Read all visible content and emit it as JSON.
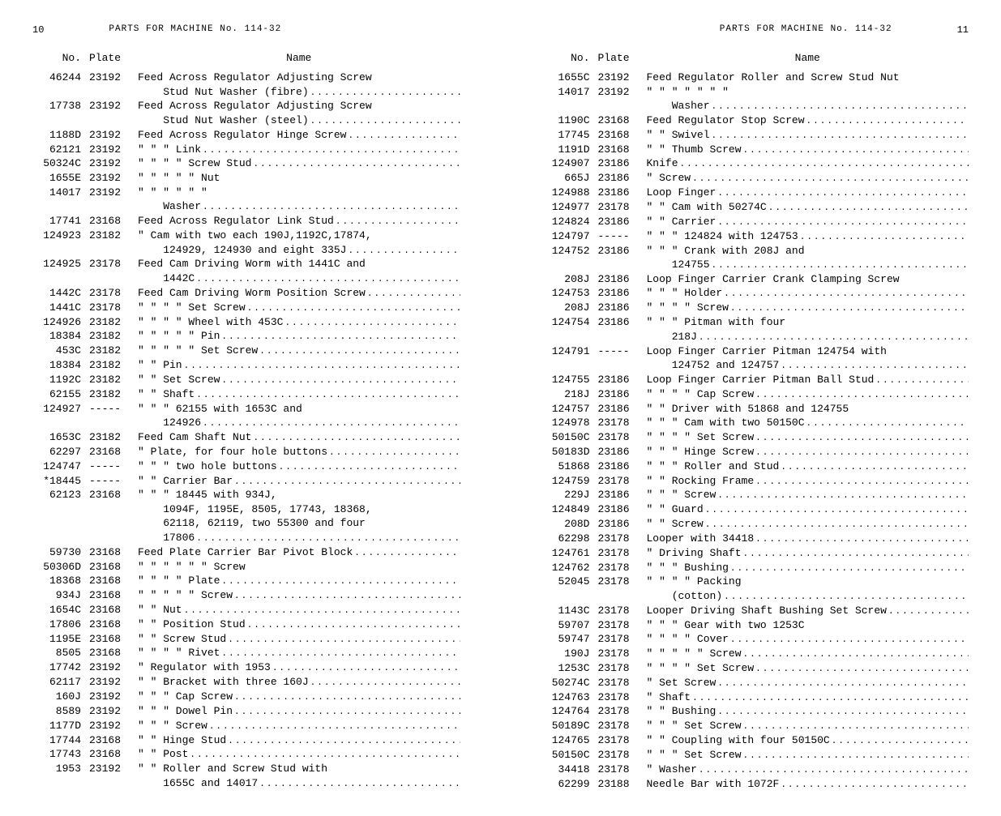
{
  "leftPage": {
    "pageNum": "10",
    "title": "PARTS FOR MACHINE No. 114-32",
    "columns": [
      "No.",
      "Plate",
      "Name"
    ],
    "rows": [
      {
        "no": "46244",
        "plate": "23192",
        "name": "Feed Across Regulator Adjusting Screw",
        "dots": false
      },
      {
        "no": "",
        "plate": "",
        "name": "   Stud Nut Washer (fibre)",
        "dots": true,
        "indent": 2
      },
      {
        "no": "17738",
        "plate": "23192",
        "name": "Feed Across Regulator Adjusting Screw",
        "dots": false
      },
      {
        "no": "",
        "plate": "",
        "name": "   Stud Nut Washer (steel)",
        "dots": true,
        "indent": 2
      },
      {
        "no": "1188D",
        "plate": "23192",
        "name": "Feed Across Regulator Hinge Screw",
        "dots": true
      },
      {
        "no": "62121",
        "plate": "23192",
        "name": "\"    \"    \"    Link",
        "dots": true
      },
      {
        "no": "50324C",
        "plate": "23192",
        "name": "\"    \"    \"     \"   Screw Stud",
        "dots": true
      },
      {
        "no": "1655E",
        "plate": "23192",
        "name": "\"    \"    \"     \"    \"   Nut",
        "dots": false
      },
      {
        "no": "14017",
        "plate": "23192",
        "name": "\"    \"    \"     \"    \"    \"",
        "dots": false
      },
      {
        "no": "",
        "plate": "",
        "name": "   Washer",
        "dots": true,
        "indent": 2
      },
      {
        "no": "17741",
        "plate": "23168",
        "name": "Feed Across Regulator Link Stud",
        "dots": true
      },
      {
        "no": "124923",
        "plate": "23182",
        "name": "\"  Cam with two each 190J,1192C,17874,",
        "dots": false
      },
      {
        "no": "",
        "plate": "",
        "name": "   124929, 124930 and eight 335J",
        "dots": true,
        "indent": 2
      },
      {
        "no": "124925",
        "plate": "23178",
        "name": "Feed Cam Driving Worm with 1441C and",
        "dots": false
      },
      {
        "no": "",
        "plate": "",
        "name": "   1442C",
        "dots": true,
        "indent": 2
      },
      {
        "no": "1442C",
        "plate": "23178",
        "name": "Feed Cam Driving Worm Position Screw",
        "dots": true
      },
      {
        "no": "1441C",
        "plate": "23178",
        "name": "\"   \"    \"    \"    Set Screw",
        "dots": true
      },
      {
        "no": "124926",
        "plate": "23182",
        "name": "\"   \"    \"    \"    Wheel with 453C",
        "dots": true
      },
      {
        "no": "18384",
        "plate": "23182",
        "name": "\"   \"    \"    \"    \"   Pin",
        "dots": true
      },
      {
        "no": "453C",
        "plate": "23182",
        "name": "\"   \"    \"    \"    \"   Set Screw",
        "dots": true
      },
      {
        "no": "18384",
        "plate": "23182",
        "name": "\"   \"    Pin",
        "dots": true
      },
      {
        "no": "1192C",
        "plate": "23182",
        "name": "\"   \"    Set Screw",
        "dots": true
      },
      {
        "no": "62155",
        "plate": "23182",
        "name": "\"   \"    Shaft",
        "dots": true
      },
      {
        "no": "124927",
        "plate": "-----",
        "name": "\"   \"     \"   62155 with 1653C and",
        "dots": false
      },
      {
        "no": "",
        "plate": "",
        "name": "   124926",
        "dots": true,
        "indent": 2
      },
      {
        "no": "1653C",
        "plate": "23182",
        "name": "Feed Cam Shaft Nut",
        "dots": true
      },
      {
        "no": "62297",
        "plate": "23168",
        "name": "\"  Plate, for four hole buttons",
        "dots": true
      },
      {
        "no": "124747",
        "plate": "-----",
        "name": "\"   \"     \"  two hole buttons",
        "dots": true
      },
      {
        "no": "*18445",
        "plate": "-----",
        "name": "\"   \"    Carrier Bar",
        "dots": true
      },
      {
        "no": "62123",
        "plate": "23168",
        "name": "\"   \"     \"   18445 with 934J,",
        "dots": false
      },
      {
        "no": "",
        "plate": "",
        "name": "   1094F, 1195E, 8505, 17743, 18368,",
        "dots": false,
        "indent": 2
      },
      {
        "no": "",
        "plate": "",
        "name": "   62118, 62119, two 55300 and four",
        "dots": false,
        "indent": 2
      },
      {
        "no": "",
        "plate": "",
        "name": "   17806",
        "dots": true,
        "indent": 2
      },
      {
        "no": "59730",
        "plate": "23168",
        "name": "Feed Plate Carrier Bar Pivot Block",
        "dots": true
      },
      {
        "no": "50306D",
        "plate": "23168",
        "name": "\"   \"    \"    \"    \"    \"   Screw",
        "dots": false
      },
      {
        "no": "18368",
        "plate": "23168",
        "name": "\"   \"    \"    \"    Plate",
        "dots": true
      },
      {
        "no": "934J",
        "plate": "23168",
        "name": "\"   \"    \"    \"     \"   Screw",
        "dots": true
      },
      {
        "no": "1654C",
        "plate": "23168",
        "name": "\"   \"    Nut",
        "dots": true
      },
      {
        "no": "17806",
        "plate": "23168",
        "name": "\"   \"    Position Stud",
        "dots": true
      },
      {
        "no": "1195E",
        "plate": "23168",
        "name": "\"   \"    Screw Stud",
        "dots": true
      },
      {
        "no": "8505",
        "plate": "23168",
        "name": "\"   \"     \"    \"   Rivet",
        "dots": true
      },
      {
        "no": "17742",
        "plate": "23192",
        "name": "\"  Regulator with 1953",
        "dots": true
      },
      {
        "no": "62117",
        "plate": "23192",
        "name": "\"   \"    Bracket with three 160J",
        "dots": true
      },
      {
        "no": "160J",
        "plate": "23192",
        "name": "\"   \"     \"    Cap Screw",
        "dots": true
      },
      {
        "no": "8589",
        "plate": "23192",
        "name": "\"   \"     \"    Dowel Pin",
        "dots": true
      },
      {
        "no": "1177D",
        "plate": "23192",
        "name": "\"   \"     \"    Screw",
        "dots": true
      },
      {
        "no": "17744",
        "plate": "23168",
        "name": "\"   \"    Hinge Stud",
        "dots": true
      },
      {
        "no": "17743",
        "plate": "23168",
        "name": "\"   \"    Post",
        "dots": true
      },
      {
        "no": "1953",
        "plate": "23192",
        "name": "\"   \"    Roller and Screw Stud with",
        "dots": false
      },
      {
        "no": "",
        "plate": "",
        "name": "   1655C and 14017",
        "dots": true,
        "indent": 2
      }
    ]
  },
  "rightPage": {
    "pageNum": "11",
    "title": "PARTS FOR MACHINE No. 114-32",
    "columns": [
      "No.",
      "Plate",
      "Name"
    ],
    "rows": [
      {
        "no": "1655C",
        "plate": "23192",
        "name": "Feed Regulator Roller and Screw Stud Nut",
        "dots": false
      },
      {
        "no": "14017",
        "plate": "23192",
        "name": "\"    \"     \"    \"    \"    \"    \"",
        "dots": false
      },
      {
        "no": "",
        "plate": "",
        "name": "   Washer",
        "dots": true,
        "indent": 2
      },
      {
        "no": "1190C",
        "plate": "23168",
        "name": "Feed Regulator Stop Screw",
        "dots": true
      },
      {
        "no": "17745",
        "plate": "23168",
        "name": "\"    \"    Swivel",
        "dots": true
      },
      {
        "no": "1191D",
        "plate": "23168",
        "name": "\"    \"    Thumb Screw",
        "dots": true
      },
      {
        "no": "124907",
        "plate": "23186",
        "name": "Knife",
        "dots": true
      },
      {
        "no": "665J",
        "plate": "23186",
        "name": "\"  Screw",
        "dots": true
      },
      {
        "no": "124988",
        "plate": "23186",
        "name": "Loop Finger",
        "dots": true
      },
      {
        "no": "124977",
        "plate": "23178",
        "name": "\"   \"    Cam with 50274C",
        "dots": true
      },
      {
        "no": "124824",
        "plate": "23186",
        "name": "\"   \"    Carrier",
        "dots": true
      },
      {
        "no": "124797",
        "plate": "-----",
        "name": "\"   \"     \"   124824 with 124753",
        "dots": true
      },
      {
        "no": "124752",
        "plate": "23186",
        "name": "\"   \"     \"   Crank with 208J and",
        "dots": false
      },
      {
        "no": "",
        "plate": "",
        "name": "   124755",
        "dots": true,
        "indent": 2
      },
      {
        "no": "208J",
        "plate": "23186",
        "name": "Loop Finger Carrier Crank Clamping Screw",
        "dots": false
      },
      {
        "no": "124753",
        "plate": "23186",
        "name": "\"   \"     \"   Holder",
        "dots": true
      },
      {
        "no": "208J",
        "plate": "23186",
        "name": "\"   \"     \"    \"   Screw",
        "dots": true
      },
      {
        "no": "124754",
        "plate": "23186",
        "name": "\"   \"     \"   Pitman with four",
        "dots": false
      },
      {
        "no": "",
        "plate": "",
        "name": "   218J",
        "dots": true,
        "indent": 2
      },
      {
        "no": "124791",
        "plate": "-----",
        "name": "Loop Finger Carrier Pitman 124754 with",
        "dots": false
      },
      {
        "no": "",
        "plate": "",
        "name": "   124752 and 124757",
        "dots": true,
        "indent": 2
      },
      {
        "no": "124755",
        "plate": "23186",
        "name": "Loop Finger Carrier Pitman Ball Stud",
        "dots": true
      },
      {
        "no": "218J",
        "plate": "23186",
        "name": "\"   \"     \"    \"   Cap Screw",
        "dots": true
      },
      {
        "no": "124757",
        "plate": "23186",
        "name": "\"   \"    Driver with 51868 and 124755",
        "dots": false
      },
      {
        "no": "124978",
        "plate": "23178",
        "name": "\"   \"     \"   Cam with two 50150C",
        "dots": true
      },
      {
        "no": "50150C",
        "plate": "23178",
        "name": "\"   \"     \"    \"   Set Screw",
        "dots": true
      },
      {
        "no": "50183D",
        "plate": "23186",
        "name": "\"   \"     \"   Hinge Screw",
        "dots": true
      },
      {
        "no": "51868",
        "plate": "23186",
        "name": "\"   \"     \"   Roller and Stud",
        "dots": true
      },
      {
        "no": "124759",
        "plate": "23178",
        "name": "\"   \"    Rocking Frame",
        "dots": true
      },
      {
        "no": "229J",
        "plate": "23186",
        "name": "\"   \"     \"   Screw",
        "dots": true
      },
      {
        "no": "124849",
        "plate": "23186",
        "name": "\"   \"    Guard",
        "dots": true
      },
      {
        "no": "208D",
        "plate": "23186",
        "name": "\"   \"    Screw",
        "dots": true
      },
      {
        "no": "62298",
        "plate": "23178",
        "name": "Looper with 34418",
        "dots": true
      },
      {
        "no": "124761",
        "plate": "23178",
        "name": "\"  Driving Shaft",
        "dots": true
      },
      {
        "no": "124762",
        "plate": "23178",
        "name": "\"   \"     \"    Bushing",
        "dots": true
      },
      {
        "no": "52045",
        "plate": "23178",
        "name": "\"   \"     \"     \"   Packing",
        "dots": false
      },
      {
        "no": "",
        "plate": "",
        "name": "   (cotton)",
        "dots": true,
        "indent": 2
      },
      {
        "no": "1143C",
        "plate": "23178",
        "name": "Looper Driving Shaft Bushing Set Screw",
        "dots": true
      },
      {
        "no": "59707",
        "plate": "23178",
        "name": "\"   \"     \"   Gear with two 1253C",
        "dots": false
      },
      {
        "no": "59747",
        "plate": "23178",
        "name": "\"   \"     \"    \"   Cover",
        "dots": true
      },
      {
        "no": "190J",
        "plate": "23178",
        "name": "\"   \"     \"    \"    \"   Screw",
        "dots": true
      },
      {
        "no": "1253C",
        "plate": "23178",
        "name": "\"   \"     \"    \"   Set Screw",
        "dots": true
      },
      {
        "no": "50274C",
        "plate": "23178",
        "name": "\"  Set Screw",
        "dots": true
      },
      {
        "no": "124763",
        "plate": "23178",
        "name": "\"  Shaft",
        "dots": true
      },
      {
        "no": "124764",
        "plate": "23178",
        "name": "\"   \"    Bushing",
        "dots": true
      },
      {
        "no": "50189C",
        "plate": "23178",
        "name": "\"   \"     \"   Set Screw",
        "dots": true
      },
      {
        "no": "124765",
        "plate": "23178",
        "name": "\"   \"    Coupling with four 50150C",
        "dots": true
      },
      {
        "no": "50150C",
        "plate": "23178",
        "name": "\"   \"     \"   Set Screw",
        "dots": true
      },
      {
        "no": "34418",
        "plate": "23178",
        "name": "\"  Washer",
        "dots": true
      },
      {
        "no": "62299",
        "plate": "23188",
        "name": "Needle Bar with 1072F",
        "dots": true
      }
    ]
  }
}
